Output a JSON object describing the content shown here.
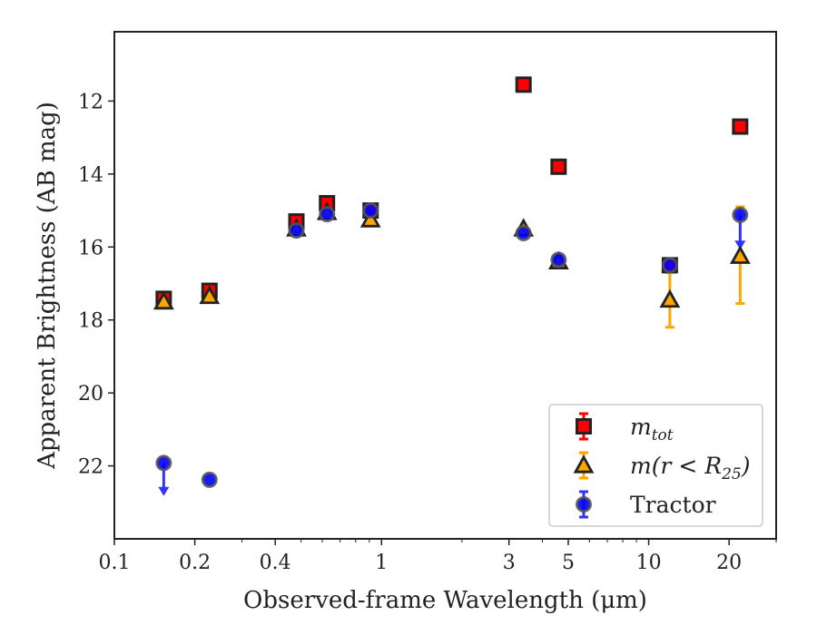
{
  "chart_data": {
    "type": "scatter",
    "xlabel": "Observed-frame Wavelength (μm)",
    "ylabel": "Apparent Brightness (AB mag)",
    "x_scale": "log",
    "xlim": [
      0.1,
      30
    ],
    "ylim": [
      24.0,
      10.1
    ],
    "y_inverted": true,
    "x_ticks": [
      0.1,
      0.2,
      0.4,
      1,
      3,
      5,
      10,
      20
    ],
    "x_tick_labels": [
      "0.1",
      "0.2",
      "0.4",
      "1",
      "3",
      "5",
      "10",
      "20"
    ],
    "y_ticks": [
      12,
      14,
      16,
      18,
      20,
      22
    ],
    "y_tick_labels": [
      "12",
      "14",
      "16",
      "18",
      "20",
      "22"
    ],
    "legend_position": "lower-right",
    "series": [
      {
        "name": "m_tot",
        "legend_label": "m",
        "legend_sub": "tot",
        "marker": "square",
        "face_color": "#ff0000",
        "edge_color": "#222222",
        "error_color": "#ff0000",
        "points": [
          {
            "x": 0.153,
            "y": 17.42
          },
          {
            "x": 0.227,
            "y": 17.2
          },
          {
            "x": 0.48,
            "y": 15.3
          },
          {
            "x": 0.625,
            "y": 14.8
          },
          {
            "x": 0.91,
            "y": 15.0
          },
          {
            "x": 3.4,
            "y": 11.55
          },
          {
            "x": 4.6,
            "y": 13.8
          },
          {
            "x": 12.0,
            "y": 16.5
          },
          {
            "x": 22.0,
            "y": 12.7
          }
        ]
      },
      {
        "name": "m(r < R25)",
        "legend_label": "m(r < R",
        "legend_sub": "25",
        "legend_close": ")",
        "marker": "triangle",
        "face_color": "#ffa500",
        "edge_color": "#222222",
        "error_color": "#ffa500",
        "points": [
          {
            "x": 0.153,
            "y": 17.5
          },
          {
            "x": 0.227,
            "y": 17.35
          },
          {
            "x": 0.48,
            "y": 15.5
          },
          {
            "x": 0.625,
            "y": 15.05
          },
          {
            "x": 0.91,
            "y": 15.25
          },
          {
            "x": 3.4,
            "y": 15.5
          },
          {
            "x": 4.6,
            "y": 16.4
          },
          {
            "x": 12.0,
            "y": 17.45,
            "yerr_low": 0.75,
            "yerr_high": 0.75
          },
          {
            "x": 22.0,
            "y": 16.25,
            "yerr_low": 1.35,
            "yerr_high": 1.3
          }
        ]
      },
      {
        "name": "Tractor",
        "legend_label": "Tractor",
        "marker": "circle",
        "face_color": "#0000ff",
        "edge_color": "#555555",
        "error_color": "#3333ff",
        "points": [
          {
            "x": 0.153,
            "y": 21.92,
            "upper_limit_arrow": 22.8
          },
          {
            "x": 0.227,
            "y": 22.38
          },
          {
            "x": 0.48,
            "y": 15.55
          },
          {
            "x": 0.625,
            "y": 15.1
          },
          {
            "x": 0.91,
            "y": 15.0
          },
          {
            "x": 3.4,
            "y": 15.62
          },
          {
            "x": 4.6,
            "y": 16.35
          },
          {
            "x": 12.0,
            "y": 16.5
          },
          {
            "x": 22.0,
            "y": 15.12,
            "upper_limit_arrow": 16.05
          }
        ]
      }
    ]
  }
}
